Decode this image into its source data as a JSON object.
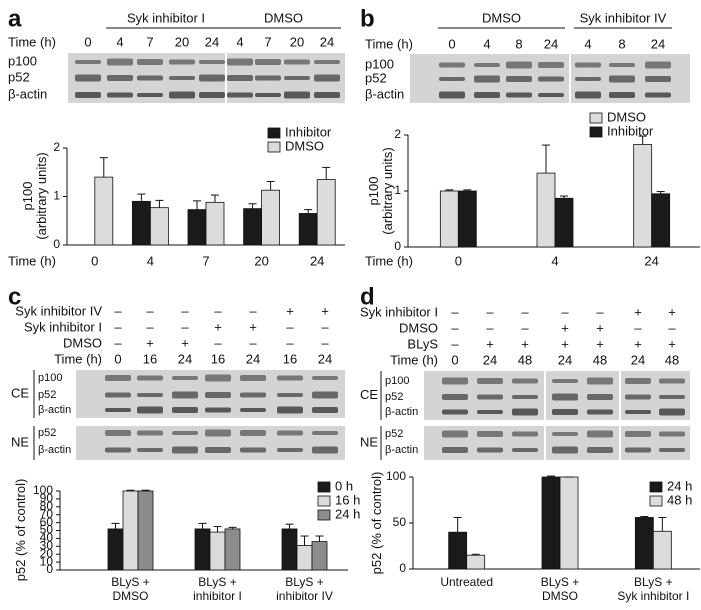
{
  "panels": [
    {
      "letter": "a",
      "groups": [
        "Syk inhibitor I",
        "DMSO"
      ],
      "rows": [
        {
          "label": "Time (h)",
          "cells": [
            "0",
            "4",
            "7",
            "20",
            "24",
            "4",
            "7",
            "20",
            "24"
          ]
        }
      ],
      "blots": [
        {
          "labels": [
            "p100",
            "p52",
            "β-actin"
          ]
        }
      ]
    },
    {
      "letter": "b",
      "groups": [
        "DMSO",
        "Syk inhibitor IV"
      ],
      "rows": [
        {
          "label": "Time (h)",
          "cells": [
            "0",
            "4",
            "8",
            "24",
            "4",
            "8",
            "24"
          ]
        }
      ],
      "blots": [
        {
          "labels": [
            "p100",
            "p52",
            "β-actin"
          ]
        }
      ]
    },
    {
      "letter": "c",
      "groups": [],
      "rows": [
        {
          "label": "Syk inhibitor IV",
          "cells": [
            "–",
            "–",
            "–",
            "–",
            "–",
            "+",
            "+"
          ]
        },
        {
          "label": "Syk inhibitor I",
          "cells": [
            "–",
            "–",
            "–",
            "+",
            "+",
            "–",
            "–"
          ]
        },
        {
          "label": "DMSO",
          "cells": [
            "–",
            "+",
            "+",
            "–",
            "–",
            "–",
            "–"
          ]
        },
        {
          "label": "Time (h)",
          "cells": [
            "0",
            "16",
            "24",
            "16",
            "24",
            "16",
            "24"
          ]
        }
      ],
      "blots": [
        {
          "fraction": "CE",
          "labels": [
            "p100",
            "p52",
            "β-actin"
          ]
        },
        {
          "fraction": "NE",
          "labels": [
            "p52",
            "β-actin"
          ]
        }
      ]
    },
    {
      "letter": "d",
      "groups": [],
      "rows": [
        {
          "label": "Syk inhibitor I",
          "cells": [
            "–",
            "–",
            "–",
            "–",
            "–",
            "+",
            "+"
          ]
        },
        {
          "label": "DMSO",
          "cells": [
            "–",
            "–",
            "–",
            "+",
            "+",
            "–",
            "–"
          ]
        },
        {
          "label": "BLyS",
          "cells": [
            "–",
            "+",
            "+",
            "+",
            "+",
            "+",
            "+"
          ]
        },
        {
          "label": "Time (h)",
          "cells": [
            "0",
            "24",
            "48",
            "24",
            "48",
            "24",
            "48"
          ]
        }
      ],
      "blots": [
        {
          "fraction": "CE",
          "labels": [
            "p100",
            "p52",
            "β-actin"
          ]
        },
        {
          "fraction": "NE",
          "labels": [
            "p52",
            "β-actin"
          ]
        }
      ]
    }
  ],
  "chart_data": [
    {
      "type": "bar",
      "y_label": [
        "p100",
        "(arbitrary units)"
      ],
      "x_label": "Time (h)",
      "categories": [
        "0",
        "4",
        "7",
        "20",
        "24"
      ],
      "series": [
        {
          "name": "Inhibitor",
          "color": "#1a1a1a",
          "values": [
            null,
            0.9,
            0.73,
            0.75,
            0.65
          ],
          "errors": [
            null,
            0.15,
            0.18,
            0.1,
            0.08
          ]
        },
        {
          "name": "DMSO",
          "color": "#dcdcdc",
          "values": [
            1.4,
            0.77,
            0.88,
            1.13,
            1.35
          ],
          "errors": [
            0.4,
            0.15,
            0.15,
            0.18,
            0.25
          ]
        }
      ],
      "ylim": [
        0,
        2
      ],
      "yticks": [
        0,
        1,
        2
      ],
      "legend": "upper right"
    },
    {
      "type": "bar",
      "y_label": [
        "p100",
        "(arbitrary units)"
      ],
      "x_label": "Time (h)",
      "categories": [
        "0",
        "4",
        "24"
      ],
      "series": [
        {
          "name": "DMSO",
          "color": "#dcdcdc",
          "values": [
            1.0,
            1.32,
            1.83
          ],
          "errors": [
            0.02,
            0.5,
            0.15
          ]
        },
        {
          "name": "Inhibitor",
          "color": "#1a1a1a",
          "values": [
            1.0,
            0.87,
            0.95
          ],
          "errors": [
            0.02,
            0.04,
            0.04
          ]
        }
      ],
      "ylim": [
        0,
        2
      ],
      "yticks": [
        0,
        1,
        2
      ],
      "legend": "upper right"
    },
    {
      "type": "bar",
      "y_label": [
        "p52 (% of control)"
      ],
      "categories": [
        [
          "BLyS +",
          "DMSO"
        ],
        [
          "BLyS +",
          "inhibitor I"
        ],
        [
          "BLyS +",
          "inhibitor IV"
        ]
      ],
      "series": [
        {
          "name": "0 h",
          "color": "#1a1a1a",
          "values": [
            52,
            52,
            52
          ],
          "errors": [
            7,
            7,
            6
          ]
        },
        {
          "name": "16 h",
          "color": "#dcdcdc",
          "values": [
            100,
            48,
            31
          ],
          "errors": [
            1,
            7,
            12
          ]
        },
        {
          "name": "24 h",
          "color": "#8c8c8c",
          "values": [
            100,
            52,
            36
          ],
          "errors": [
            1,
            2,
            7
          ]
        }
      ],
      "ylim": [
        0,
        100
      ],
      "yticks": [
        0,
        10,
        20,
        30,
        40,
        50,
        60,
        70,
        80,
        90,
        100
      ],
      "legend": "upper right"
    },
    {
      "type": "bar",
      "y_label": [
        "p52 (% of control)"
      ],
      "categories": [
        [
          "Untreated"
        ],
        [
          "BLyS +",
          "DMSO"
        ],
        [
          "BLyS +",
          "Syk inhibitor I"
        ]
      ],
      "series": [
        {
          "name": "24 h",
          "color": "#1a1a1a",
          "values": [
            40,
            100,
            56
          ],
          "errors": [
            16,
            1,
            1
          ]
        },
        {
          "name": "48 h",
          "color": "#dcdcdc",
          "values": [
            15,
            100,
            41
          ],
          "errors": [
            1,
            0,
            15
          ]
        }
      ],
      "ylim": [
        0,
        100
      ],
      "yticks": [
        0,
        50,
        100
      ],
      "legend": "upper right"
    }
  ]
}
